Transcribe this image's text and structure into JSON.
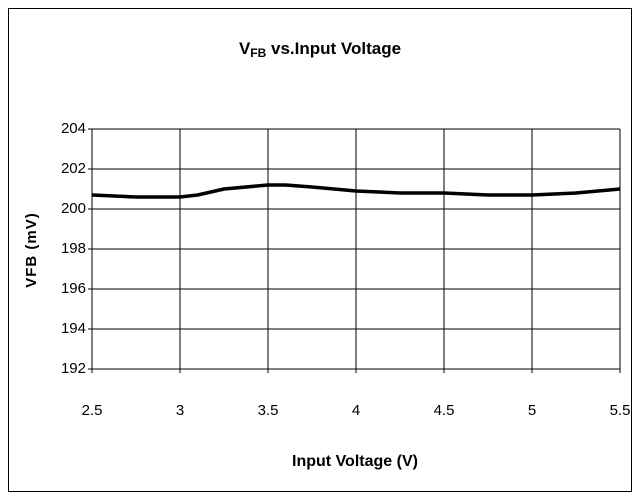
{
  "chart_data": {
    "type": "line",
    "title": [
      "V",
      "FB",
      " vs.Input Voltage"
    ],
    "x_label": "Input Voltage (V)",
    "y_label": "VFB (mV)",
    "x": [
      2.5,
      2.75,
      3,
      3.1,
      3.25,
      3.5,
      3.6,
      3.75,
      4,
      4.25,
      4.5,
      4.75,
      5,
      5.25,
      5.5
    ],
    "series": [
      {
        "color": "#000000",
        "values": [
          200.7,
          200.6,
          200.6,
          200.7,
          201.0,
          201.2,
          201.2,
          201.1,
          200.9,
          200.8,
          200.8,
          200.7,
          200.7,
          200.8,
          201.0
        ]
      }
    ],
    "xlim": [
      2.5,
      5.5
    ],
    "xticks": [
      2.5,
      3,
      3.5,
      4,
      4.5,
      5,
      5.5
    ],
    "ylim": [
      192,
      204
    ],
    "yticks": [
      192,
      194,
      196,
      198,
      200,
      202,
      204
    ],
    "grid": true
  }
}
